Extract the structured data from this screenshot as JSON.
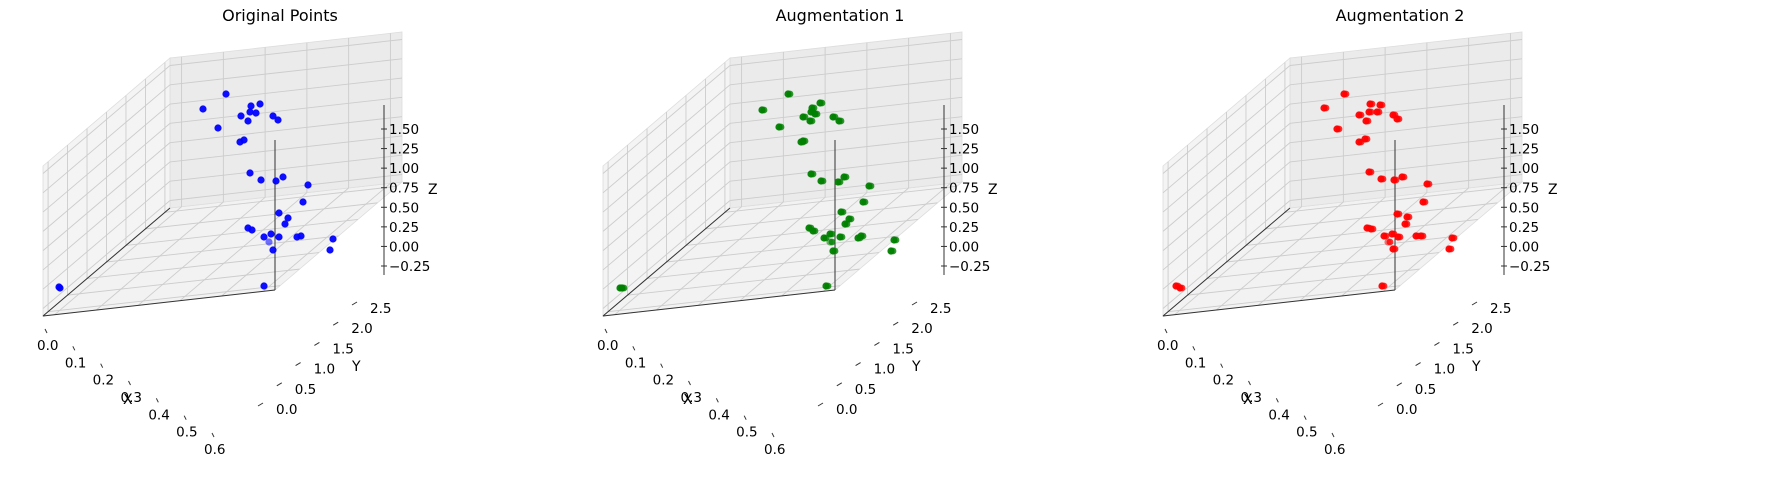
{
  "chart_data": [
    {
      "type": "scatter",
      "title": "Original Points",
      "color": "#0000ff",
      "xlabel": "X",
      "ylabel": "Y",
      "zlabel": "Z",
      "x_ticks": [
        "0.0",
        "0.1",
        "0.2",
        "0.3",
        "0.4",
        "0.5",
        "0.6"
      ],
      "y_ticks": [
        "0.0",
        "0.5",
        "1.0",
        "1.5",
        "2.0",
        "2.5"
      ],
      "z_ticks": [
        "−0.25",
        "0.00",
        "0.25",
        "0.50",
        "0.75",
        "1.00",
        "1.25",
        "1.50"
      ],
      "xlim": [
        -0.02,
        0.64
      ],
      "ylim": [
        -0.1,
        2.75
      ],
      "zlim": [
        -0.38,
        1.68
      ],
      "grid": true
    },
    {
      "type": "scatter",
      "title": "Augmentation 1",
      "color": "#008000",
      "xlabel": "X",
      "ylabel": "Y",
      "zlabel": "Z",
      "x_ticks": [
        "0.0",
        "0.1",
        "0.2",
        "0.3",
        "0.4",
        "0.5",
        "0.6"
      ],
      "y_ticks": [
        "0.0",
        "0.5",
        "1.0",
        "1.5",
        "2.0",
        "2.5"
      ],
      "z_ticks": [
        "−0.25",
        "0.00",
        "0.25",
        "0.50",
        "0.75",
        "1.00",
        "1.25",
        "1.50"
      ],
      "xlim": [
        -0.02,
        0.64
      ],
      "ylim": [
        -0.1,
        2.75
      ],
      "zlim": [
        -0.38,
        1.68
      ],
      "grid": true
    },
    {
      "type": "scatter",
      "title": "Augmentation 2",
      "color": "#ff0000",
      "xlabel": "X",
      "ylabel": "Y",
      "zlabel": "Z",
      "x_ticks": [
        "0.0",
        "0.1",
        "0.2",
        "0.3",
        "0.4",
        "0.5",
        "0.6"
      ],
      "y_ticks": [
        "0.0",
        "0.5",
        "1.0",
        "1.5",
        "2.0",
        "2.5"
      ],
      "z_ticks": [
        "−0.25",
        "0.00",
        "0.25",
        "0.50",
        "0.75",
        "1.00",
        "1.25",
        "1.50"
      ],
      "xlim": [
        -0.02,
        0.64
      ],
      "ylim": [
        -0.1,
        2.75
      ],
      "zlim": [
        -0.38,
        1.68
      ],
      "grid": true
    }
  ]
}
